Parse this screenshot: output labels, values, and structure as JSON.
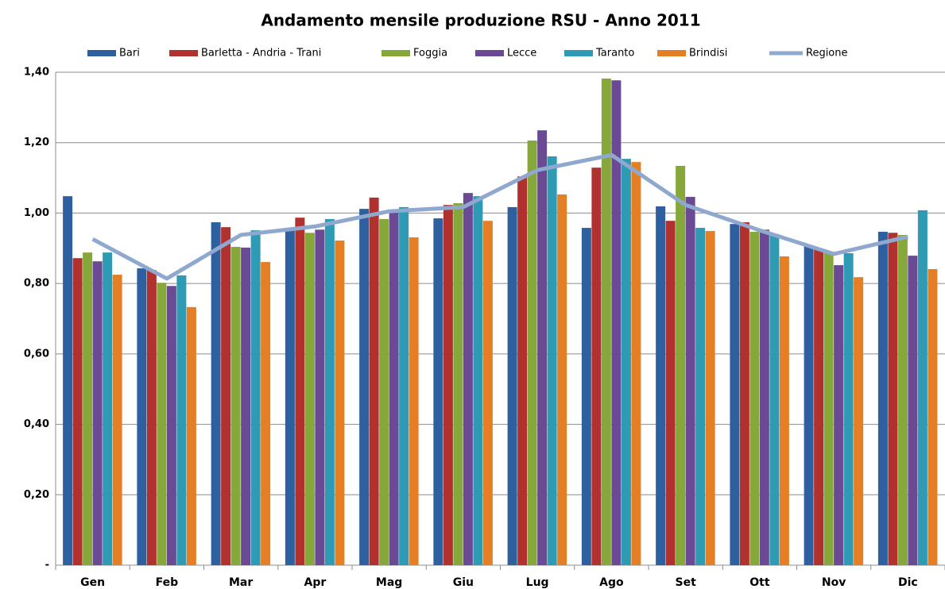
{
  "chart_data": {
    "type": "bar",
    "title": "Andamento mensile produzione RSU - Anno 2011",
    "categories": [
      "Gen",
      "Feb",
      "Mar",
      "Apr",
      "Mag",
      "Giu",
      "Lug",
      "Ago",
      "Set",
      "Ott",
      "Nov",
      "Dic"
    ],
    "series": [
      {
        "name": "Bari",
        "color": "#2e5f9e",
        "values": [
          1.048,
          0.843,
          0.974,
          0.951,
          1.012,
          0.985,
          1.017,
          0.958,
          1.019,
          0.969,
          0.908,
          0.947
        ]
      },
      {
        "name": "Barletta - Andria - Trani",
        "color": "#b0312d",
        "values": [
          0.872,
          0.838,
          0.96,
          0.987,
          1.044,
          1.023,
          1.104,
          1.129,
          0.978,
          0.974,
          0.897,
          0.944
        ]
      },
      {
        "name": "Foggia",
        "color": "#86a83a",
        "values": [
          0.888,
          0.802,
          0.904,
          0.944,
          0.983,
          1.028,
          1.206,
          1.382,
          1.134,
          0.947,
          0.888,
          0.938
        ]
      },
      {
        "name": "Lecce",
        "color": "#6a4a94",
        "values": [
          0.863,
          0.793,
          0.902,
          0.953,
          1.001,
          1.057,
          1.235,
          1.377,
          1.046,
          0.953,
          0.852,
          0.879
        ]
      },
      {
        "name": "Taranto",
        "color": "#2f9ab3",
        "values": [
          0.888,
          0.823,
          0.951,
          0.983,
          1.017,
          1.048,
          1.161,
          1.154,
          0.958,
          0.94,
          0.886,
          1.008
        ]
      },
      {
        "name": "Brindisi",
        "color": "#e57f26",
        "values": [
          0.825,
          0.733,
          0.861,
          0.922,
          0.931,
          0.978,
          1.053,
          1.145,
          0.949,
          0.877,
          0.818,
          0.841
        ]
      },
      {
        "name": "Regione",
        "color": "#8fa8cf",
        "type": "line",
        "values": [
          0.926,
          0.814,
          0.938,
          0.962,
          1.005,
          1.017,
          1.122,
          1.165,
          1.023,
          0.951,
          0.884,
          0.933
        ]
      }
    ],
    "ylim": [
      0,
      1.4
    ],
    "yticks": [
      {
        "value": 0,
        "label": "-"
      },
      {
        "value": 0.2,
        "label": "0,20"
      },
      {
        "value": 0.4,
        "label": "0,40"
      },
      {
        "value": 0.6,
        "label": "0,60"
      },
      {
        "value": 0.8,
        "label": "0,80"
      },
      {
        "value": 1.0,
        "label": "1,00"
      },
      {
        "value": 1.2,
        "label": "1,20"
      },
      {
        "value": 1.4,
        "label": "1,40"
      }
    ],
    "grid": true,
    "legend": "top"
  }
}
